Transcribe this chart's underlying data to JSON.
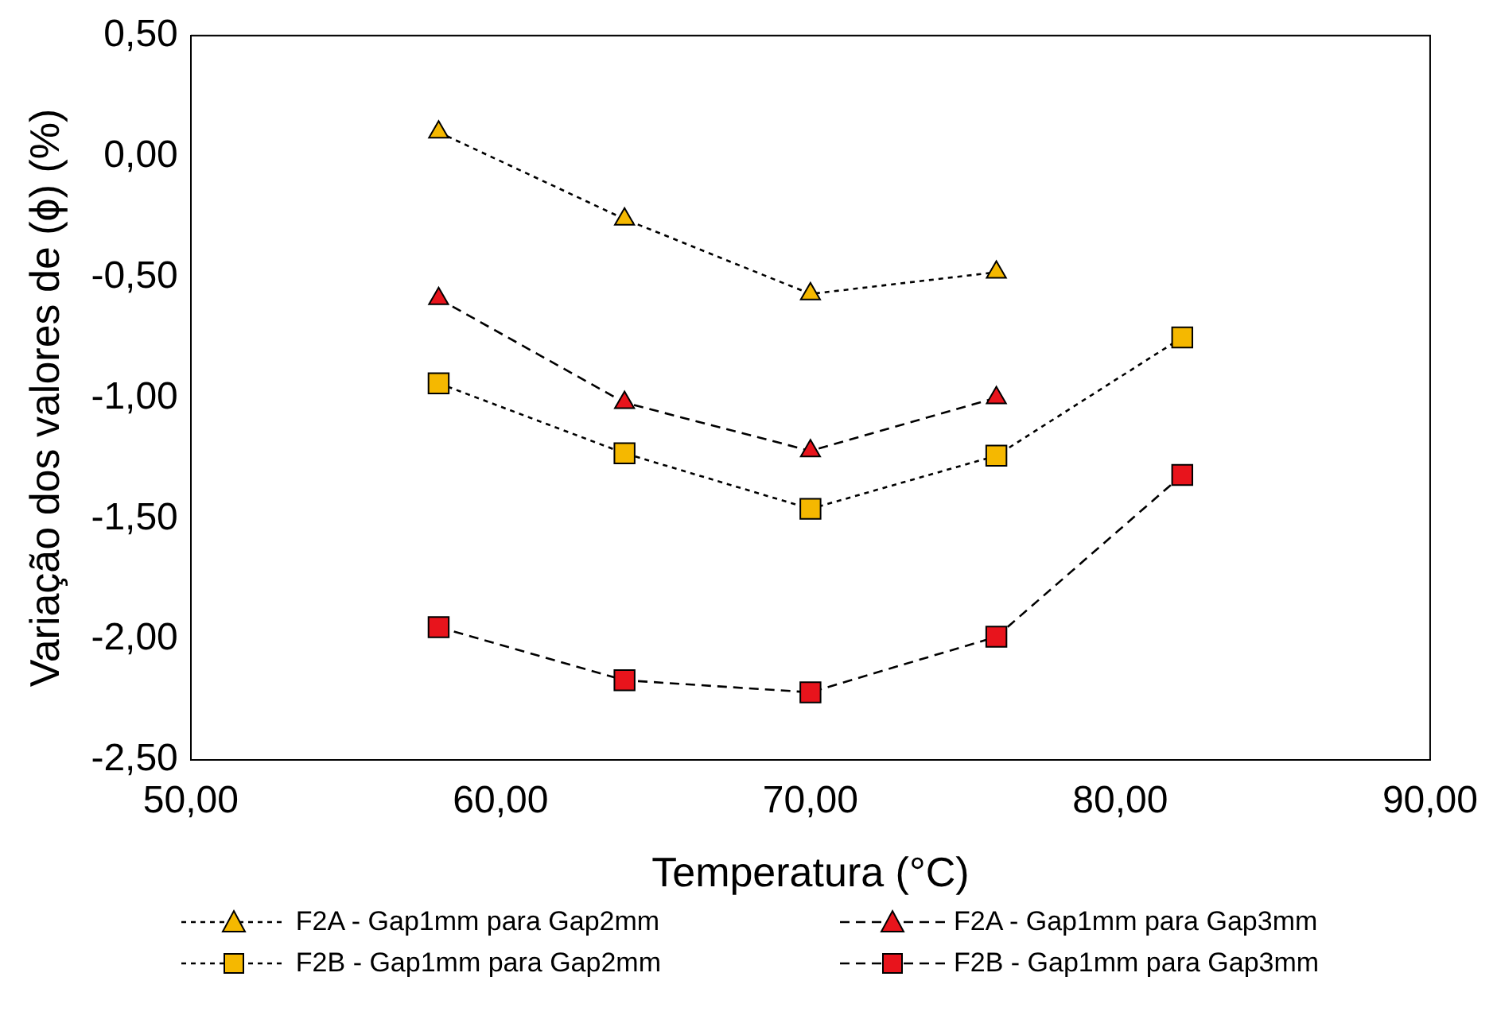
{
  "chart_data": {
    "type": "line",
    "xlabel": "Temperatura (°C)",
    "ylabel": "Variação dos valores de (ϕ) (%)",
    "xlim": [
      50,
      90
    ],
    "xticks": [
      {
        "value": 50,
        "label": "50,00"
      },
      {
        "value": 60,
        "label": "60,00"
      },
      {
        "value": 70,
        "label": "70,00"
      },
      {
        "value": 80,
        "label": "80,00"
      },
      {
        "value": 90,
        "label": "90,00"
      }
    ],
    "ylim": [
      -2.5,
      0.5
    ],
    "yticks": [
      {
        "value": -2.5,
        "label": "-2,50"
      },
      {
        "value": -2,
        "label": "-2,00"
      },
      {
        "value": -1.5,
        "label": "-1,50"
      },
      {
        "value": -1,
        "label": "-1,00"
      },
      {
        "value": -0.5,
        "label": "-0,50"
      },
      {
        "value": 0,
        "label": "0,00"
      },
      {
        "value": 0.5,
        "label": "0,50"
      }
    ],
    "grid": false,
    "legend": "bottom",
    "series": [
      {
        "name": "F2A - Gap1mm para Gap2mm",
        "color": "#f5b800",
        "marker": "triangle",
        "line_style": "dotted",
        "x": [
          58,
          64,
          70,
          76
        ],
        "values": [
          0.1,
          -0.26,
          -0.57,
          -0.48
        ]
      },
      {
        "name": "F2A - Gap1mm para Gap3mm",
        "color": "#e8141c",
        "marker": "triangle",
        "line_style": "dashed",
        "x": [
          58,
          64,
          70,
          76
        ],
        "values": [
          -0.59,
          -1.02,
          -1.22,
          -1.0
        ]
      },
      {
        "name": "F2B - Gap1mm para Gap2mm",
        "color": "#f5b800",
        "marker": "square",
        "line_style": "dotted",
        "x": [
          58,
          64,
          70,
          76,
          82
        ],
        "values": [
          -0.94,
          -1.23,
          -1.46,
          -1.24,
          -0.75
        ]
      },
      {
        "name": "F2B - Gap1mm para Gap3mm",
        "color": "#e8141c",
        "marker": "square",
        "line_style": "dashed",
        "x": [
          58,
          64,
          70,
          76,
          82
        ],
        "values": [
          -1.95,
          -2.17,
          -2.22,
          -1.99,
          -1.32
        ]
      }
    ]
  }
}
